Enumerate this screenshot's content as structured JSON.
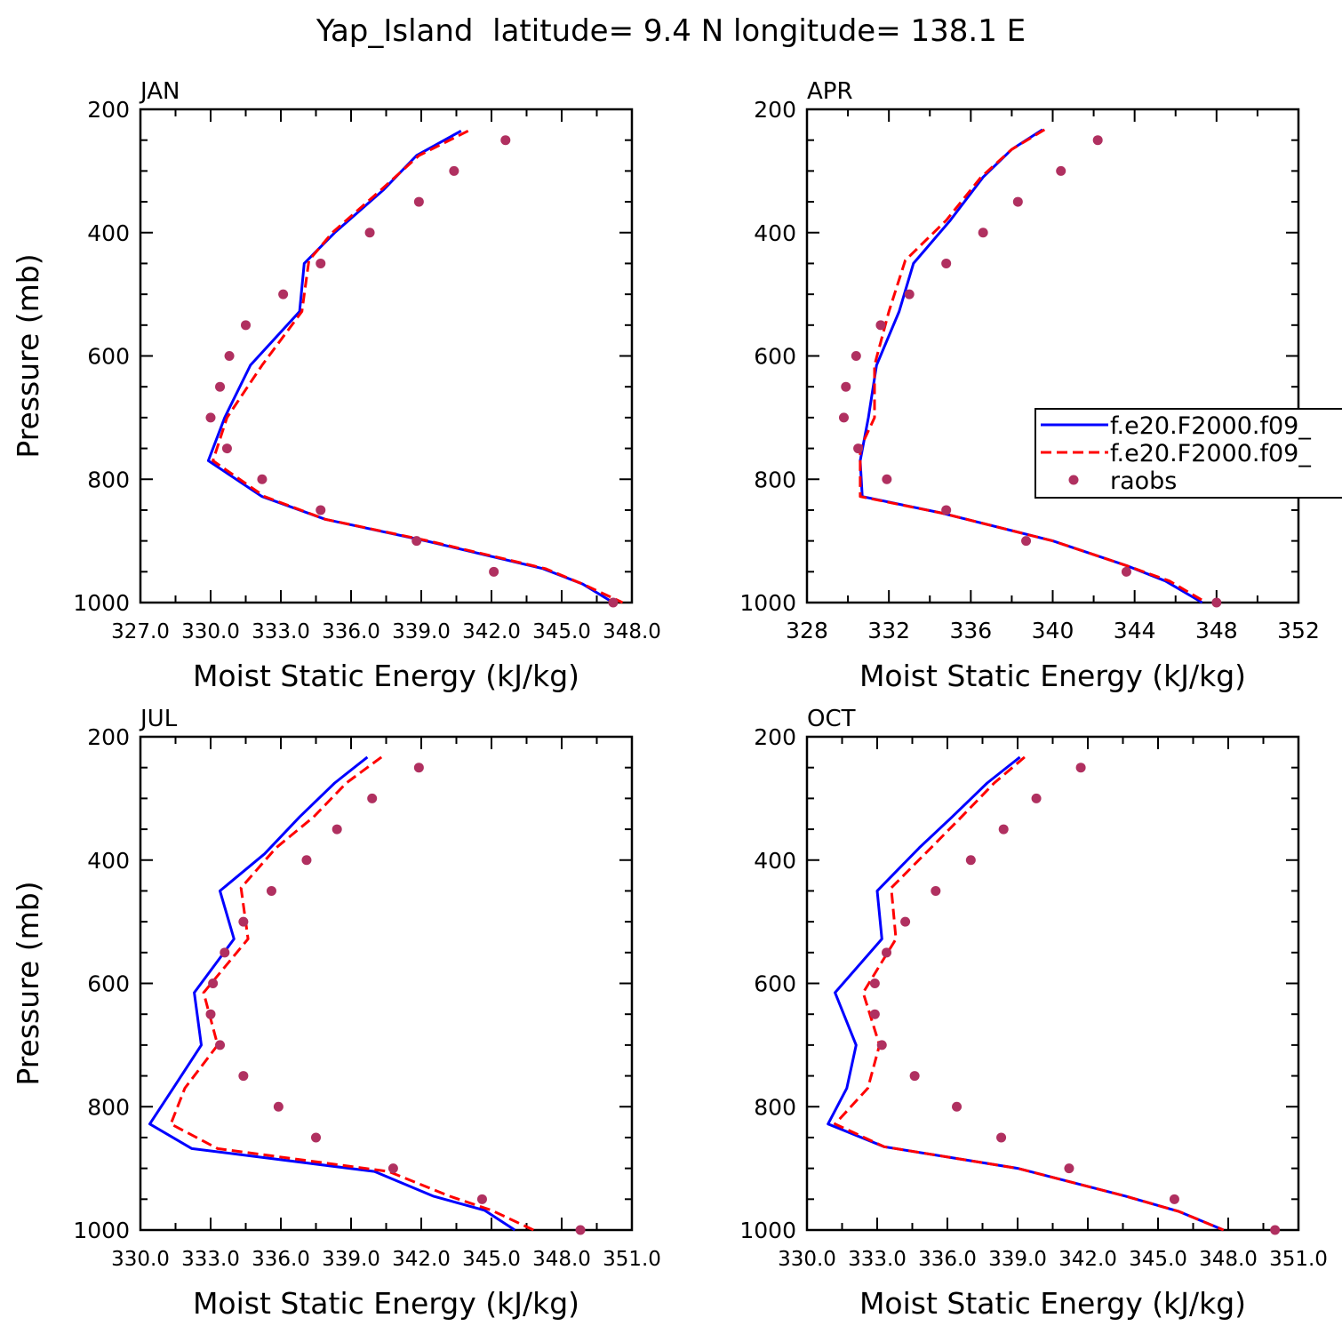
{
  "figure_title": "Yap_Island  latitude= 9.4 N longitude= 138.1 E",
  "legend": {
    "entries": [
      {
        "label": "f.e20.F2000.f09_",
        "color": "#0000ff",
        "style": "solid"
      },
      {
        "label": "f.e20.F2000.f09_",
        "color": "#ff0000",
        "style": "dashed"
      },
      {
        "label": "raobs",
        "color": "#b03060",
        "style": "dot"
      }
    ]
  },
  "chart_data": [
    {
      "type": "line",
      "panel_label": "JAN",
      "xlabel": "Moist Static Energy (kJ/kg)",
      "ylabel": "Pressure (mb)",
      "xlim": [
        327.0,
        348.0
      ],
      "ylim": [
        1000,
        200
      ],
      "xticks": [
        327,
        330,
        333,
        336,
        339,
        342,
        345,
        348
      ],
      "xtick_labels": [
        "327.0",
        "330.0",
        "333.0",
        "336.0",
        "339.0",
        "342.0",
        "345.0",
        "348.0"
      ],
      "yticks": [
        200,
        400,
        600,
        800,
        1000
      ],
      "ytick_labels": [
        "200",
        "400",
        "600",
        "800",
        "1000"
      ],
      "series": [
        {
          "name": "f.e20.F2000.f09_",
          "color": "#0000ff",
          "dash": false,
          "points": [
            [
              340.7,
              235
            ],
            [
              338.8,
              275
            ],
            [
              337.4,
              330
            ],
            [
              335.3,
              400
            ],
            [
              334.0,
              450
            ],
            [
              333.8,
              528
            ],
            [
              331.7,
              615
            ],
            [
              330.6,
              700
            ],
            [
              329.9,
              770
            ],
            [
              332.2,
              828
            ],
            [
              334.9,
              865
            ],
            [
              339.2,
              900
            ],
            [
              344.2,
              945
            ],
            [
              345.9,
              970
            ],
            [
              347.2,
              1000
            ]
          ]
        },
        {
          "name": "f.e20.F2000.f09_",
          "color": "#ff0000",
          "dash": true,
          "points": [
            [
              341.0,
              235
            ],
            [
              338.9,
              275
            ],
            [
              337.3,
              330
            ],
            [
              335.2,
              400
            ],
            [
              334.2,
              445
            ],
            [
              333.9,
              528
            ],
            [
              332.2,
              615
            ],
            [
              330.7,
              700
            ],
            [
              330.1,
              770
            ],
            [
              332.3,
              828
            ],
            [
              334.9,
              865
            ],
            [
              339.3,
              900
            ],
            [
              344.3,
              945
            ],
            [
              345.9,
              970
            ],
            [
              347.6,
              1000
            ]
          ]
        }
      ],
      "observations": [
        [
          342.6,
          250
        ],
        [
          340.4,
          300
        ],
        [
          338.9,
          350
        ],
        [
          336.8,
          400
        ],
        [
          334.7,
          450
        ],
        [
          333.1,
          500
        ],
        [
          331.5,
          550
        ],
        [
          330.8,
          600
        ],
        [
          330.4,
          650
        ],
        [
          330.0,
          700
        ],
        [
          330.7,
          750
        ],
        [
          332.2,
          800
        ],
        [
          334.7,
          850
        ],
        [
          338.8,
          900
        ],
        [
          342.1,
          950
        ],
        [
          347.2,
          1000
        ]
      ]
    },
    {
      "type": "line",
      "panel_label": "APR",
      "xlabel": "Moist Static Energy (kJ/kg)",
      "ylabel": "",
      "xlim": [
        328,
        352
      ],
      "ylim": [
        1000,
        200
      ],
      "xticks": [
        328,
        332,
        336,
        340,
        344,
        348,
        352
      ],
      "xtick_labels": [
        "328",
        "332",
        "336",
        "340",
        "344",
        "348",
        "352"
      ],
      "yticks": [
        200,
        400,
        600,
        800,
        1000
      ],
      "ytick_labels": [
        "200",
        "400",
        "600",
        "800",
        "1000"
      ],
      "series": [
        {
          "name": "f.e20.F2000.f09_",
          "color": "#0000ff",
          "dash": false,
          "points": [
            [
              339.5,
              233
            ],
            [
              338.0,
              265
            ],
            [
              336.6,
              310
            ],
            [
              335.0,
              380
            ],
            [
              333.2,
              450
            ],
            [
              332.5,
              528
            ],
            [
              331.4,
              615
            ],
            [
              331.0,
              700
            ],
            [
              330.6,
              770
            ],
            [
              330.7,
              828
            ],
            [
              334.6,
              855
            ],
            [
              340.0,
              900
            ],
            [
              343.6,
              940
            ],
            [
              345.5,
              965
            ],
            [
              347.3,
              1000
            ]
          ]
        },
        {
          "name": "f.e20.F2000.f09_",
          "color": "#ff0000",
          "dash": true,
          "points": [
            [
              339.6,
              233
            ],
            [
              338.0,
              265
            ],
            [
              336.5,
              310
            ],
            [
              334.8,
              380
            ],
            [
              332.8,
              445
            ],
            [
              332.0,
              528
            ],
            [
              331.3,
              615
            ],
            [
              331.3,
              700
            ],
            [
              330.6,
              750
            ],
            [
              330.6,
              828
            ],
            [
              334.6,
              855
            ],
            [
              340.0,
              900
            ],
            [
              343.6,
              940
            ],
            [
              345.7,
              965
            ],
            [
              347.5,
              1000
            ]
          ]
        }
      ],
      "observations": [
        [
          342.2,
          250
        ],
        [
          340.4,
          300
        ],
        [
          338.3,
          350
        ],
        [
          336.6,
          400
        ],
        [
          334.8,
          450
        ],
        [
          333.0,
          500
        ],
        [
          331.6,
          550
        ],
        [
          330.4,
          600
        ],
        [
          329.9,
          650
        ],
        [
          329.8,
          700
        ],
        [
          330.5,
          750
        ],
        [
          331.9,
          800
        ],
        [
          334.8,
          850
        ],
        [
          338.7,
          900
        ],
        [
          343.6,
          950
        ],
        [
          348.0,
          1000
        ]
      ]
    },
    {
      "type": "line",
      "panel_label": "JUL",
      "xlabel": "Moist Static Energy (kJ/kg)",
      "ylabel": "Pressure (mb)",
      "xlim": [
        330.0,
        351.0
      ],
      "ylim": [
        1000,
        200
      ],
      "xticks": [
        330,
        333,
        336,
        339,
        342,
        345,
        348,
        351
      ],
      "xtick_labels": [
        "330.0",
        "333.0",
        "336.0",
        "339.0",
        "342.0",
        "345.0",
        "348.0",
        "351.0"
      ],
      "yticks": [
        200,
        400,
        600,
        800,
        1000
      ],
      "ytick_labels": [
        "200",
        "400",
        "600",
        "800",
        "1000"
      ],
      "series": [
        {
          "name": "f.e20.F2000.f09_",
          "color": "#0000ff",
          "dash": false,
          "points": [
            [
              339.7,
              233
            ],
            [
              338.3,
              275
            ],
            [
              336.8,
              330
            ],
            [
              335.3,
              390
            ],
            [
              333.4,
              450
            ],
            [
              334.0,
              528
            ],
            [
              332.3,
              615
            ],
            [
              332.6,
              700
            ],
            [
              331.4,
              770
            ],
            [
              330.4,
              828
            ],
            [
              332.2,
              868
            ],
            [
              340.0,
              905
            ],
            [
              342.5,
              945
            ],
            [
              344.7,
              968
            ],
            [
              346.0,
              1000
            ]
          ]
        },
        {
          "name": "f.e20.F2000.f09_",
          "color": "#ff0000",
          "dash": true,
          "points": [
            [
              340.3,
              233
            ],
            [
              338.8,
              275
            ],
            [
              337.4,
              330
            ],
            [
              335.8,
              380
            ],
            [
              334.3,
              445
            ],
            [
              334.6,
              528
            ],
            [
              332.7,
              615
            ],
            [
              333.3,
              700
            ],
            [
              331.9,
              770
            ],
            [
              331.3,
              828
            ],
            [
              333.3,
              868
            ],
            [
              340.6,
              905
            ],
            [
              343.2,
              945
            ],
            [
              345.0,
              968
            ],
            [
              346.8,
              1000
            ]
          ]
        }
      ],
      "observations": [
        [
          341.9,
          250
        ],
        [
          339.9,
          300
        ],
        [
          338.4,
          350
        ],
        [
          337.1,
          400
        ],
        [
          335.6,
          450
        ],
        [
          334.4,
          500
        ],
        [
          333.6,
          550
        ],
        [
          333.1,
          600
        ],
        [
          333.0,
          650
        ],
        [
          333.4,
          700
        ],
        [
          334.4,
          750
        ],
        [
          335.9,
          800
        ],
        [
          337.5,
          850
        ],
        [
          340.8,
          900
        ],
        [
          344.6,
          950
        ],
        [
          348.8,
          1000
        ]
      ]
    },
    {
      "type": "line",
      "panel_label": "OCT",
      "xlabel": "Moist Static Energy (kJ/kg)",
      "ylabel": "",
      "xlim": [
        330.0,
        351.0
      ],
      "ylim": [
        1000,
        200
      ],
      "xticks": [
        330,
        333,
        336,
        339,
        342,
        345,
        348,
        351
      ],
      "xtick_labels": [
        "330.0",
        "333.0",
        "336.0",
        "339.0",
        "342.0",
        "345.0",
        "348.0",
        "351.0"
      ],
      "yticks": [
        200,
        400,
        600,
        800,
        1000
      ],
      "ytick_labels": [
        "200",
        "400",
        "600",
        "800",
        "1000"
      ],
      "series": [
        {
          "name": "f.e20.F2000.f09_",
          "color": "#0000ff",
          "dash": false,
          "points": [
            [
              339.1,
              233
            ],
            [
              337.7,
              275
            ],
            [
              336.2,
              330
            ],
            [
              334.8,
              380
            ],
            [
              333.0,
              450
            ],
            [
              333.2,
              528
            ],
            [
              331.2,
              615
            ],
            [
              332.1,
              700
            ],
            [
              331.7,
              770
            ],
            [
              330.9,
              828
            ],
            [
              333.3,
              865
            ],
            [
              339.0,
              900
            ],
            [
              343.6,
              945
            ],
            [
              345.9,
              970
            ],
            [
              347.8,
              1000
            ]
          ]
        },
        {
          "name": "f.e20.F2000.f09_",
          "color": "#ff0000",
          "dash": true,
          "points": [
            [
              339.3,
              233
            ],
            [
              338.0,
              275
            ],
            [
              336.6,
              330
            ],
            [
              335.3,
              380
            ],
            [
              333.6,
              445
            ],
            [
              333.8,
              528
            ],
            [
              332.4,
              615
            ],
            [
              333.1,
              700
            ],
            [
              332.6,
              770
            ],
            [
              331.2,
              828
            ],
            [
              333.3,
              865
            ],
            [
              339.0,
              900
            ],
            [
              343.6,
              945
            ],
            [
              345.9,
              970
            ],
            [
              347.8,
              1000
            ]
          ]
        }
      ],
      "observations": [
        [
          341.7,
          250
        ],
        [
          339.8,
          300
        ],
        [
          338.4,
          350
        ],
        [
          337.0,
          400
        ],
        [
          335.5,
          450
        ],
        [
          334.2,
          500
        ],
        [
          333.4,
          550
        ],
        [
          332.9,
          600
        ],
        [
          332.9,
          650
        ],
        [
          333.2,
          700
        ],
        [
          334.6,
          750
        ],
        [
          336.4,
          800
        ],
        [
          338.3,
          850
        ],
        [
          341.2,
          900
        ],
        [
          345.7,
          950
        ],
        [
          350.0,
          1000
        ]
      ]
    }
  ]
}
